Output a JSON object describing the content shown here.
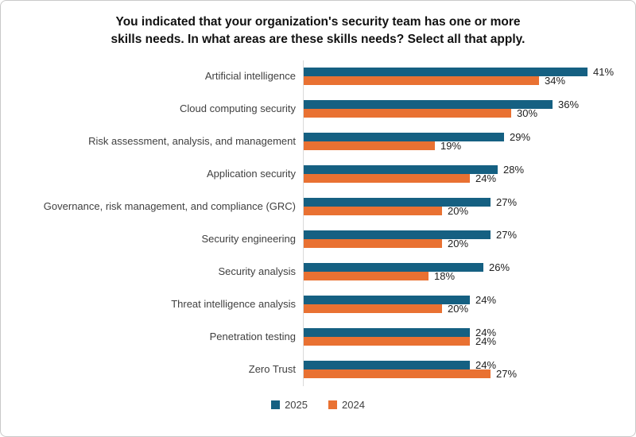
{
  "window": {
    "background": "#ffffff",
    "border_color": "#c9c9c9"
  },
  "chart_data": {
    "type": "bar",
    "orientation": "horizontal",
    "title": "You indicated that your organization's security team has one or more\nskills needs. In what areas are these skills needs? Select all that apply.",
    "categories": [
      "Artificial intelligence",
      "Cloud computing security",
      "Risk assessment, analysis, and management",
      "Application security",
      "Governance, risk management, and compliance (GRC)",
      "Security engineering",
      "Security analysis",
      "Threat intelligence analysis",
      "Penetration testing",
      "Zero Trust"
    ],
    "series": [
      {
        "name": "2025",
        "color": "#156082",
        "values": [
          41,
          36,
          29,
          28,
          27,
          27,
          26,
          24,
          24,
          24
        ]
      },
      {
        "name": "2024",
        "color": "#E97132",
        "values": [
          34,
          30,
          19,
          24,
          20,
          20,
          18,
          20,
          24,
          27
        ]
      }
    ],
    "value_suffix": "%",
    "xlim": [
      0,
      45
    ],
    "xlabel": "",
    "ylabel": "",
    "grid": false,
    "legend_position": "bottom",
    "axis_line_color": "#d9d9d9"
  }
}
